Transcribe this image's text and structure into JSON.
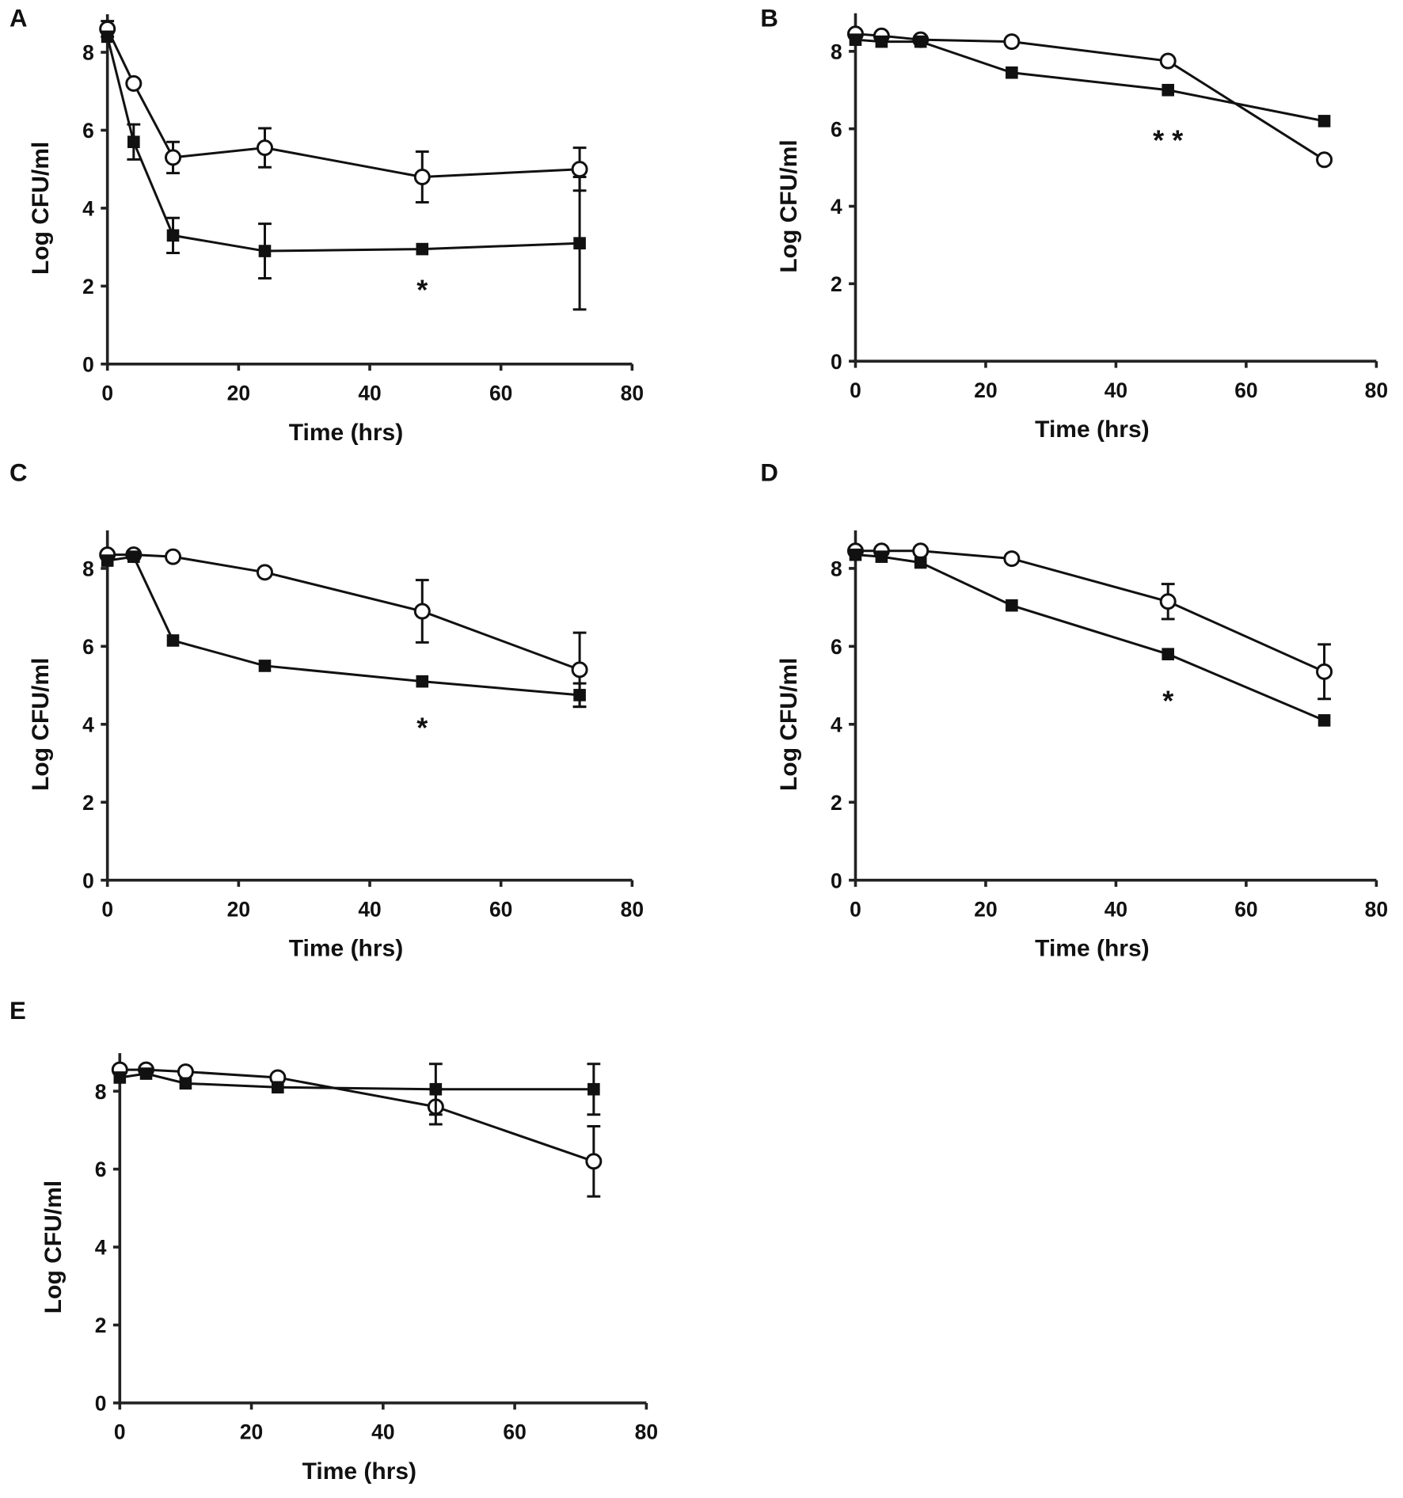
{
  "chart_data": [
    {
      "panel": "A",
      "type": "line",
      "xlabel": "Time (hrs)",
      "ylabel": "Log CFU/ml",
      "xlim": [
        0,
        80
      ],
      "ylim": [
        0,
        8
      ],
      "xticks": [
        0,
        20,
        40,
        60,
        80
      ],
      "yticks": [
        0,
        2,
        4,
        6,
        8
      ],
      "series": [
        {
          "name": "open circles",
          "marker": "open-circle",
          "x": [
            0,
            4,
            10,
            24,
            48,
            72
          ],
          "y": [
            8.6,
            7.2,
            5.3,
            5.55,
            4.8,
            5.0
          ],
          "err": [
            0.2,
            0,
            0.4,
            0.5,
            0.65,
            0.55
          ]
        },
        {
          "name": "filled squares",
          "marker": "filled-square",
          "x": [
            0,
            4,
            10,
            24,
            48,
            72
          ],
          "y": [
            8.4,
            5.7,
            3.3,
            2.9,
            2.95,
            3.1
          ],
          "err": [
            0,
            0.45,
            0.45,
            0.7,
            0,
            1.7
          ]
        }
      ],
      "annotations": [
        {
          "text": "*",
          "x": 48,
          "y": 1.9
        }
      ]
    },
    {
      "panel": "B",
      "type": "line",
      "xlabel": "Time (hrs)",
      "ylabel": "Log CFU/ml",
      "xlim": [
        0,
        80
      ],
      "ylim": [
        0,
        8
      ],
      "xticks": [
        0,
        20,
        40,
        60,
        80
      ],
      "yticks": [
        0,
        2,
        4,
        6,
        8
      ],
      "series": [
        {
          "name": "open circles",
          "marker": "open-circle",
          "x": [
            0,
            4,
            10,
            24,
            48,
            72
          ],
          "y": [
            8.45,
            8.4,
            8.3,
            8.25,
            7.75,
            5.2
          ],
          "err": [
            0,
            0,
            0,
            0,
            0,
            0
          ]
        },
        {
          "name": "filled squares",
          "marker": "filled-square",
          "x": [
            0,
            4,
            10,
            24,
            48,
            72
          ],
          "y": [
            8.3,
            8.25,
            8.25,
            7.45,
            7.0,
            6.2
          ],
          "err": [
            0,
            0,
            0,
            0,
            0,
            0
          ]
        }
      ],
      "annotations": [
        {
          "text": "* *",
          "x": 48,
          "y": 5.7
        }
      ]
    },
    {
      "panel": "C",
      "type": "line",
      "xlabel": "Time (hrs)",
      "ylabel": "Log CFU/ml",
      "xlim": [
        0,
        80
      ],
      "ylim": [
        0,
        8
      ],
      "xticks": [
        0,
        20,
        40,
        60,
        80
      ],
      "yticks": [
        0,
        2,
        4,
        6,
        8
      ],
      "series": [
        {
          "name": "open circles",
          "marker": "open-circle",
          "x": [
            0,
            4,
            10,
            24,
            48,
            72
          ],
          "y": [
            8.35,
            8.35,
            8.3,
            7.9,
            6.9,
            5.4
          ],
          "err": [
            0,
            0,
            0,
            0,
            0.8,
            0.95
          ]
        },
        {
          "name": "filled squares",
          "marker": "filled-square",
          "x": [
            0,
            4,
            10,
            24,
            48,
            72
          ],
          "y": [
            8.2,
            8.3,
            6.15,
            5.5,
            5.1,
            4.75
          ],
          "err": [
            0,
            0,
            0,
            0,
            0,
            0.3
          ]
        }
      ],
      "annotations": [
        {
          "text": "*",
          "x": 48,
          "y": 3.9
        }
      ]
    },
    {
      "panel": "D",
      "type": "line",
      "xlabel": "Time (hrs)",
      "ylabel": "Log CFU/ml",
      "xlim": [
        0,
        80
      ],
      "ylim": [
        0,
        8
      ],
      "xticks": [
        0,
        20,
        40,
        60,
        80
      ],
      "yticks": [
        0,
        2,
        4,
        6,
        8
      ],
      "series": [
        {
          "name": "open circles",
          "marker": "open-circle",
          "x": [
            0,
            4,
            10,
            24,
            48,
            72
          ],
          "y": [
            8.45,
            8.45,
            8.45,
            8.25,
            7.15,
            5.35
          ],
          "err": [
            0,
            0,
            0,
            0,
            0.45,
            0.7
          ]
        },
        {
          "name": "filled squares",
          "marker": "filled-square",
          "x": [
            0,
            4,
            10,
            24,
            48,
            72
          ],
          "y": [
            8.35,
            8.3,
            8.15,
            7.05,
            5.8,
            4.1
          ],
          "err": [
            0,
            0,
            0,
            0,
            0,
            0
          ]
        }
      ],
      "annotations": [
        {
          "text": "*",
          "x": 48,
          "y": 4.6
        }
      ]
    },
    {
      "panel": "E",
      "type": "line",
      "xlabel": "Time (hrs)",
      "ylabel": "Log CFU/ml",
      "xlim": [
        0,
        80
      ],
      "ylim": [
        0,
        8
      ],
      "xticks": [
        0,
        20,
        40,
        60,
        80
      ],
      "yticks": [
        0,
        2,
        4,
        6,
        8
      ],
      "series": [
        {
          "name": "open circles",
          "marker": "open-circle",
          "x": [
            0,
            4,
            10,
            24,
            48,
            72
          ],
          "y": [
            8.55,
            8.55,
            8.5,
            8.35,
            7.6,
            6.2
          ],
          "err": [
            0,
            0,
            0,
            0,
            0.45,
            0.9
          ]
        },
        {
          "name": "filled squares",
          "marker": "filled-square",
          "x": [
            0,
            4,
            10,
            24,
            48,
            72
          ],
          "y": [
            8.35,
            8.45,
            8.2,
            8.1,
            8.05,
            8.05
          ],
          "err": [
            0,
            0,
            0,
            0,
            0.65,
            0.65
          ]
        }
      ],
      "annotations": []
    }
  ]
}
